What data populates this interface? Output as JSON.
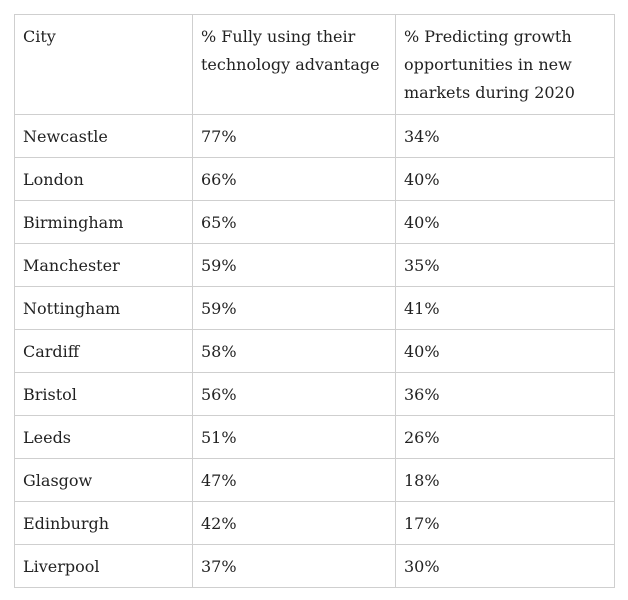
{
  "table": {
    "headers": [
      "City",
      "% Fully using their technology advantage",
      "% Predicting growth opportunities in new markets during 2020"
    ],
    "rows": [
      [
        "Newcastle",
        "77%",
        "34%"
      ],
      [
        "London",
        "66%",
        "40%"
      ],
      [
        "Birmingham",
        "65%",
        "40%"
      ],
      [
        "Manchester",
        "59%",
        "35%"
      ],
      [
        "Nottingham",
        "59%",
        "41%"
      ],
      [
        "Cardiff",
        "58%",
        "40%"
      ],
      [
        "Bristol",
        "56%",
        "36%"
      ],
      [
        "Leeds",
        "51%",
        "26%"
      ],
      [
        "Glasgow",
        "47%",
        "18%"
      ],
      [
        "Edinburgh",
        "42%",
        "17%"
      ],
      [
        "Liverpool",
        "37%",
        "30%"
      ]
    ]
  },
  "colors": {
    "border": "#cfcfcf",
    "text": "#222222",
    "background": "#ffffff"
  }
}
